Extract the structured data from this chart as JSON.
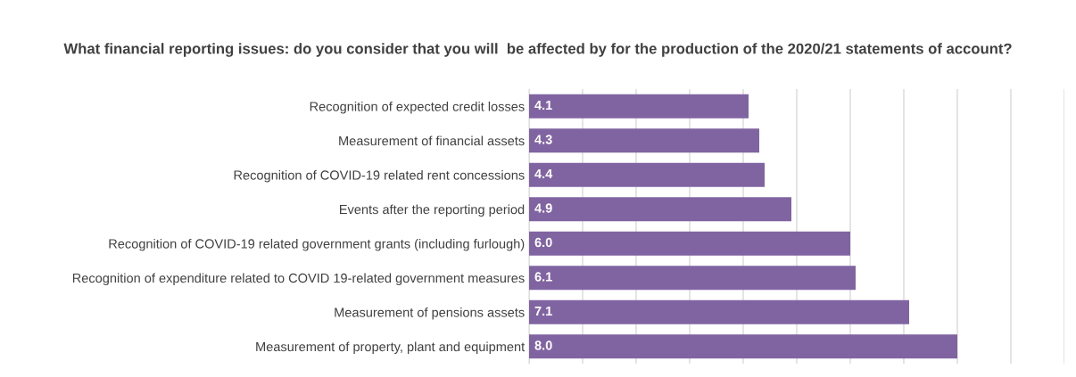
{
  "chart_data": {
    "type": "bar",
    "orientation": "horizontal",
    "title": "What financial reporting issues: do you consider that you will  be affected by for the production of the 2020/21 statements of account?",
    "categories": [
      "Recognition of expected credit losses",
      "Measurement of financial assets",
      "Recognition of COVID-19 related rent concessions",
      "Events after the reporting period",
      "Recognition of COVID-19 related government grants (including furlough)",
      "Recognition of expenditure related to COVID 19-related government measures",
      "Measurement of pensions assets",
      "Measurement of property, plant and equipment"
    ],
    "values": [
      4.1,
      4.3,
      4.4,
      4.9,
      6.0,
      6.1,
      7.1,
      8.0
    ],
    "value_labels": [
      "4.1",
      "4.3",
      "4.4",
      "4.9",
      "6.0",
      "6.1",
      "7.1",
      "8.0"
    ],
    "color": "#8064a2",
    "xlim": [
      0,
      10
    ],
    "xticks": [
      {
        "value": 0,
        "label": null
      },
      {
        "value": 1,
        "label": null
      },
      {
        "value": 2,
        "label": null
      },
      {
        "value": 3,
        "label": null
      },
      {
        "value": 4,
        "label": null
      },
      {
        "value": 5,
        "label": null
      },
      {
        "value": 6,
        "label": null
      },
      {
        "value": 7,
        "label": null
      },
      {
        "value": 8,
        "label": null
      },
      {
        "value": 9,
        "label": null
      },
      {
        "value": 10,
        "label": null
      }
    ],
    "grid": "x",
    "tick_labels": "y",
    "legend": false
  }
}
